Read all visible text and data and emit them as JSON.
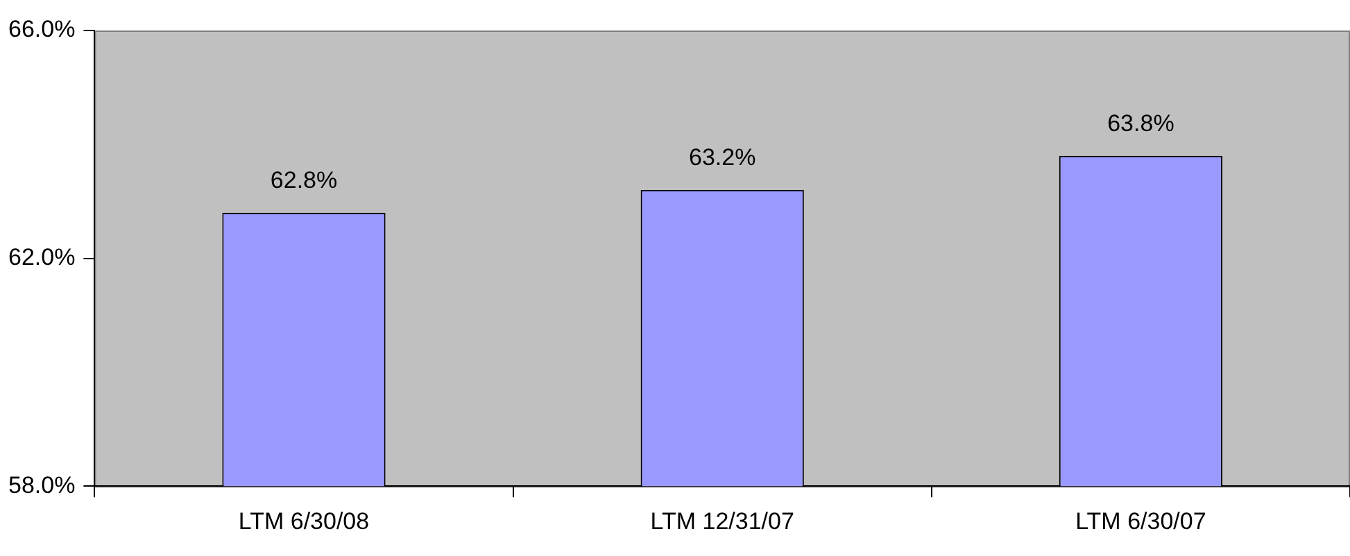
{
  "chart_data": {
    "type": "bar",
    "categories": [
      "LTM 6/30/08",
      "LTM 12/31/07",
      "LTM 6/30/07"
    ],
    "values": [
      62.8,
      63.2,
      63.8
    ],
    "color": "#9999ff",
    "value_labels": [
      "62.8%",
      "63.2%",
      "63.8%"
    ],
    "ylim": [
      58,
      66
    ],
    "yticks": [
      {
        "value": 58,
        "label": "58.0%"
      },
      {
        "value": 62,
        "label": "62.0%"
      },
      {
        "value": 66,
        "label": "66.0%"
      }
    ],
    "grid": false,
    "legend": false
  }
}
